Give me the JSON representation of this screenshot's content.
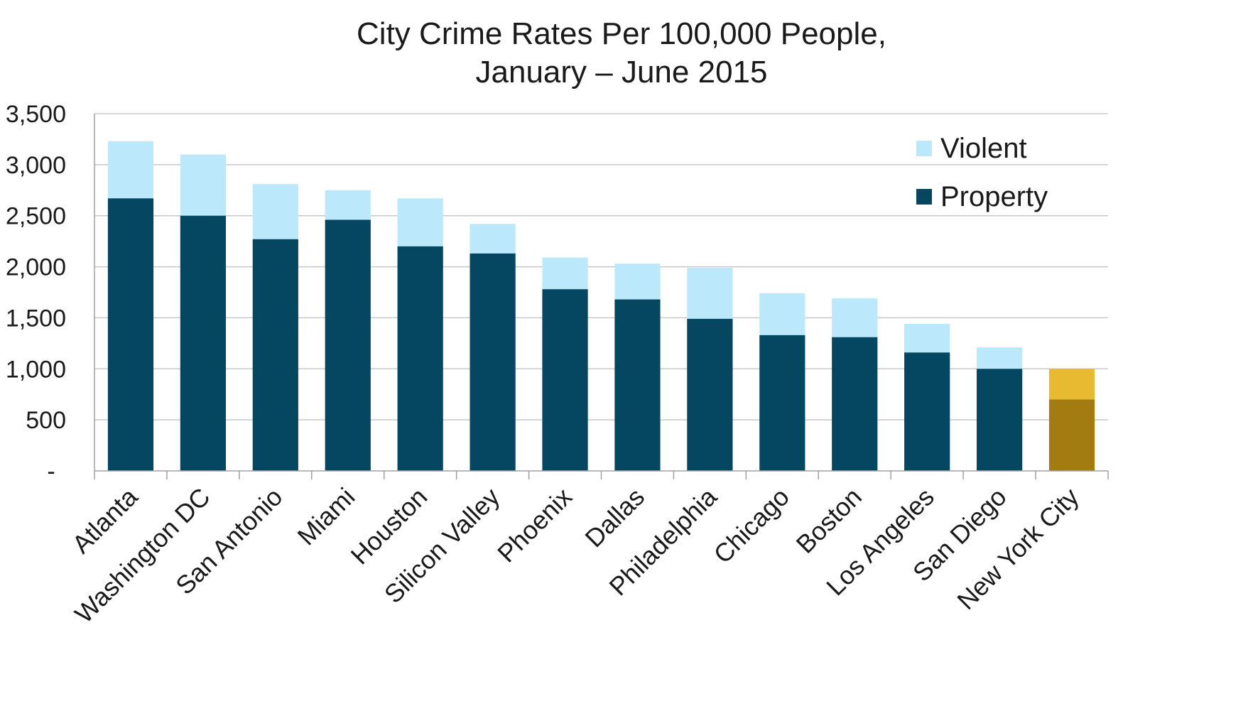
{
  "chart_data": {
    "type": "bar",
    "stacked": true,
    "title_lines": [
      "City Crime Rates Per 100,000 People,",
      "January – June 2015"
    ],
    "xlabel": "",
    "ylabel": "",
    "ylim": [
      0,
      3500
    ],
    "yticks": [
      0,
      500,
      1000,
      1500,
      2000,
      2500,
      3000,
      3500
    ],
    "ytick_labels": [
      "-",
      "500",
      "1,000",
      "1,500",
      "2,000",
      "2,500",
      "3,000",
      "3,500"
    ],
    "grid": true,
    "legend_position": "top-right",
    "categories": [
      "Atlanta",
      "Washington DC",
      "San Antonio",
      "Miami",
      "Houston",
      "Silicon Valley",
      "Phoenix",
      "Dallas",
      "Philadelphia",
      "Chicago",
      "Boston",
      "Los Angeles",
      "San Diego",
      "New York City"
    ],
    "series": [
      {
        "name": "Property",
        "color": "#054660",
        "values": [
          2670,
          2500,
          2270,
          2460,
          2200,
          2130,
          1780,
          1680,
          1490,
          1330,
          1310,
          1160,
          1000,
          700
        ]
      },
      {
        "name": "Violent",
        "color": "#bbe9fb",
        "values": [
          560,
          600,
          540,
          290,
          470,
          290,
          310,
          350,
          500,
          410,
          380,
          280,
          210,
          300
        ]
      }
    ],
    "highlight": {
      "category": "New York City",
      "property_color": "#a27c11",
      "violent_color": "#e7ba31"
    },
    "legend": [
      {
        "label": "Violent",
        "color": "#bbe9fb"
      },
      {
        "label": "Property",
        "color": "#054660"
      }
    ]
  },
  "colors": {
    "grid": "#c8c8c8",
    "axis": "#a0a0a0",
    "text": "#1a1a1a"
  }
}
